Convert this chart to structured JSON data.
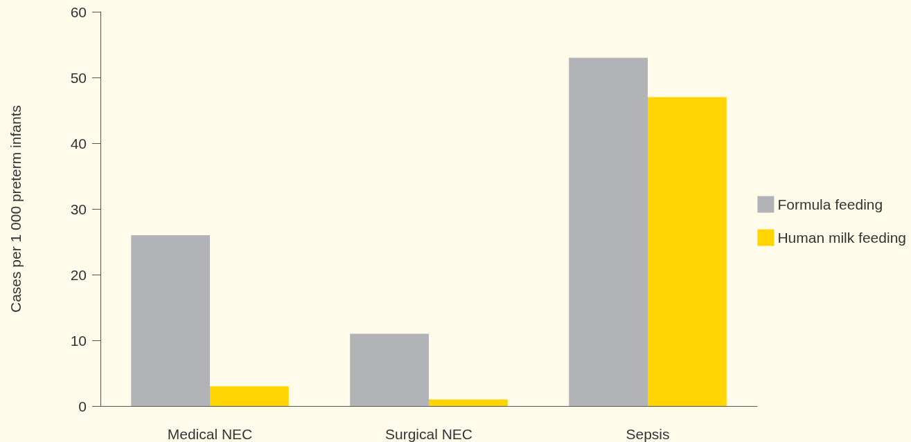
{
  "chart_data": {
    "type": "bar",
    "ylabel": "Cases per 1 000 preterm infants",
    "categories": [
      "Medical NEC",
      "Surgical NEC",
      "Sepsis"
    ],
    "series": [
      {
        "name": "Formula feeding",
        "color": "#b1b3b6",
        "values": [
          26,
          11,
          53
        ]
      },
      {
        "name": "Human milk feeding",
        "color": "#ffd400",
        "values": [
          3,
          1,
          47
        ]
      }
    ],
    "ylim": [
      0,
      60
    ],
    "yticks": [
      0,
      10,
      20,
      30,
      40,
      50,
      60
    ],
    "grid": false,
    "legend": "right"
  }
}
